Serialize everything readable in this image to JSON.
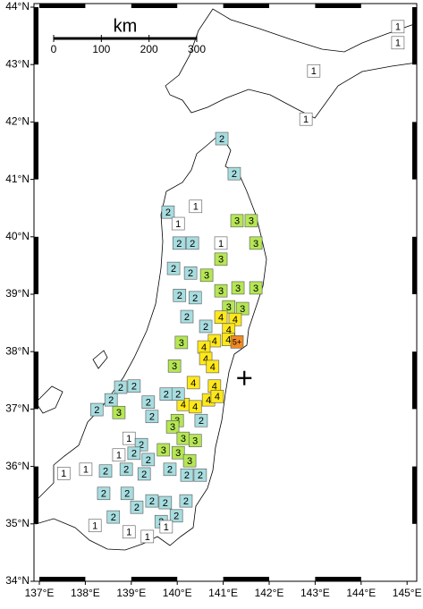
{
  "map": {
    "lon_ticks": [
      {
        "value": 137,
        "label": "137°E"
      },
      {
        "value": 138,
        "label": "138°E"
      },
      {
        "value": 139,
        "label": "139°E"
      },
      {
        "value": 140,
        "label": "140°E"
      },
      {
        "value": 141,
        "label": "141°E"
      },
      {
        "value": 142,
        "label": "142°E"
      },
      {
        "value": 143,
        "label": "143°E"
      },
      {
        "value": 144,
        "label": "144°E"
      },
      {
        "value": 145,
        "label": "145°E"
      }
    ],
    "lat_ticks": [
      {
        "value": 34,
        "label": "34°N"
      },
      {
        "value": 35,
        "label": "35°N"
      },
      {
        "value": 36,
        "label": "36°N"
      },
      {
        "value": 37,
        "label": "37°N"
      },
      {
        "value": 38,
        "label": "38°N"
      },
      {
        "value": 39,
        "label": "39°N"
      },
      {
        "value": 40,
        "label": "40°N"
      },
      {
        "value": 41,
        "label": "41°N"
      },
      {
        "value": 42,
        "label": "42°N"
      },
      {
        "value": 43,
        "label": "43°N"
      },
      {
        "value": 44,
        "label": "44°N"
      }
    ],
    "scale_bar": {
      "unit": "km",
      "ticks": [
        0,
        100,
        200,
        300
      ]
    },
    "epicenter": {
      "lon": 141.46,
      "lat": 37.54
    },
    "intensity_colors": {
      "1": "#ffffff",
      "2": "#a8dde0",
      "3": "#b5e655",
      "4": "#ffe81a",
      "5+": "#f08a24"
    },
    "stations": [
      {
        "lon": 142.97,
        "lat": 42.89,
        "intensity": "1"
      },
      {
        "lon": 142.8,
        "lat": 42.05,
        "intensity": "1"
      },
      {
        "lon": 144.8,
        "lat": 43.66,
        "intensity": "1"
      },
      {
        "lon": 144.8,
        "lat": 43.38,
        "intensity": "1"
      },
      {
        "lon": 140.97,
        "lat": 41.71,
        "intensity": "2"
      },
      {
        "lon": 141.24,
        "lat": 41.1,
        "intensity": "2"
      },
      {
        "lon": 140.4,
        "lat": 40.53,
        "intensity": "1"
      },
      {
        "lon": 139.8,
        "lat": 40.43,
        "intensity": "2"
      },
      {
        "lon": 140.02,
        "lat": 40.23,
        "intensity": "1"
      },
      {
        "lon": 141.3,
        "lat": 40.28,
        "intensity": "3"
      },
      {
        "lon": 141.61,
        "lat": 40.28,
        "intensity": "3"
      },
      {
        "lon": 141.71,
        "lat": 39.89,
        "intensity": "3"
      },
      {
        "lon": 140.95,
        "lat": 39.89,
        "intensity": "1"
      },
      {
        "lon": 140.04,
        "lat": 39.89,
        "intensity": "2"
      },
      {
        "lon": 140.33,
        "lat": 39.89,
        "intensity": "2"
      },
      {
        "lon": 140.95,
        "lat": 39.61,
        "intensity": "3"
      },
      {
        "lon": 139.92,
        "lat": 39.45,
        "intensity": "2"
      },
      {
        "lon": 140.29,
        "lat": 39.37,
        "intensity": "2"
      },
      {
        "lon": 140.64,
        "lat": 39.33,
        "intensity": "3"
      },
      {
        "lon": 140.95,
        "lat": 39.06,
        "intensity": "3"
      },
      {
        "lon": 141.32,
        "lat": 39.11,
        "intensity": "3"
      },
      {
        "lon": 141.71,
        "lat": 39.11,
        "intensity": "3"
      },
      {
        "lon": 140.05,
        "lat": 38.98,
        "intensity": "2"
      },
      {
        "lon": 140.39,
        "lat": 38.94,
        "intensity": "2"
      },
      {
        "lon": 141.12,
        "lat": 38.78,
        "intensity": "3"
      },
      {
        "lon": 141.42,
        "lat": 38.75,
        "intensity": "3"
      },
      {
        "lon": 140.95,
        "lat": 38.6,
        "intensity": "4"
      },
      {
        "lon": 141.26,
        "lat": 38.56,
        "intensity": "4"
      },
      {
        "lon": 140.62,
        "lat": 38.44,
        "intensity": "2"
      },
      {
        "lon": 140.21,
        "lat": 38.61,
        "intensity": "2"
      },
      {
        "lon": 141.12,
        "lat": 38.38,
        "intensity": "4"
      },
      {
        "lon": 140.81,
        "lat": 38.19,
        "intensity": "4"
      },
      {
        "lon": 141.11,
        "lat": 38.21,
        "intensity": "4"
      },
      {
        "lon": 141.3,
        "lat": 38.17,
        "intensity": "5+"
      },
      {
        "lon": 140.09,
        "lat": 38.16,
        "intensity": "3"
      },
      {
        "lon": 140.58,
        "lat": 38.08,
        "intensity": "4"
      },
      {
        "lon": 139.94,
        "lat": 37.75,
        "intensity": "3"
      },
      {
        "lon": 140.62,
        "lat": 37.88,
        "intensity": "4"
      },
      {
        "lon": 140.77,
        "lat": 37.74,
        "intensity": "4"
      },
      {
        "lon": 140.35,
        "lat": 37.46,
        "intensity": "4"
      },
      {
        "lon": 140.81,
        "lat": 37.4,
        "intensity": "4"
      },
      {
        "lon": 140.68,
        "lat": 37.16,
        "intensity": "4"
      },
      {
        "lon": 140.87,
        "lat": 37.22,
        "intensity": "4"
      },
      {
        "lon": 140.13,
        "lat": 37.08,
        "intensity": "4"
      },
      {
        "lon": 140.39,
        "lat": 37.04,
        "intensity": "4"
      },
      {
        "lon": 139.76,
        "lat": 37.26,
        "intensity": "2"
      },
      {
        "lon": 140.02,
        "lat": 37.26,
        "intensity": "2"
      },
      {
        "lon": 138.77,
        "lat": 37.38,
        "intensity": "2"
      },
      {
        "lon": 139.06,
        "lat": 37.4,
        "intensity": "2"
      },
      {
        "lon": 138.56,
        "lat": 37.16,
        "intensity": "2"
      },
      {
        "lon": 138.25,
        "lat": 36.99,
        "intensity": "2"
      },
      {
        "lon": 138.73,
        "lat": 36.94,
        "intensity": "3"
      },
      {
        "lon": 139.37,
        "lat": 37.12,
        "intensity": "2"
      },
      {
        "lon": 139.45,
        "lat": 36.87,
        "intensity": "2"
      },
      {
        "lon": 140.0,
        "lat": 36.8,
        "intensity": "3"
      },
      {
        "lon": 140.52,
        "lat": 36.8,
        "intensity": "2"
      },
      {
        "lon": 139.9,
        "lat": 36.69,
        "intensity": "3"
      },
      {
        "lon": 140.13,
        "lat": 36.49,
        "intensity": "3"
      },
      {
        "lon": 140.39,
        "lat": 36.45,
        "intensity": "3"
      },
      {
        "lon": 138.95,
        "lat": 36.49,
        "intensity": "1"
      },
      {
        "lon": 139.22,
        "lat": 36.38,
        "intensity": "2"
      },
      {
        "lon": 139.7,
        "lat": 36.29,
        "intensity": "3"
      },
      {
        "lon": 140.02,
        "lat": 36.24,
        "intensity": "3"
      },
      {
        "lon": 140.27,
        "lat": 36.1,
        "intensity": "3"
      },
      {
        "lon": 138.73,
        "lat": 36.2,
        "intensity": "1"
      },
      {
        "lon": 139.06,
        "lat": 36.23,
        "intensity": "2"
      },
      {
        "lon": 139.37,
        "lat": 36.12,
        "intensity": "2"
      },
      {
        "lon": 139.84,
        "lat": 35.95,
        "intensity": "2"
      },
      {
        "lon": 140.21,
        "lat": 35.85,
        "intensity": "2"
      },
      {
        "lon": 140.5,
        "lat": 35.85,
        "intensity": "2"
      },
      {
        "lon": 137.53,
        "lat": 35.88,
        "intensity": "1"
      },
      {
        "lon": 138.01,
        "lat": 35.95,
        "intensity": "1"
      },
      {
        "lon": 138.44,
        "lat": 35.92,
        "intensity": "2"
      },
      {
        "lon": 138.89,
        "lat": 35.95,
        "intensity": "2"
      },
      {
        "lon": 139.28,
        "lat": 35.87,
        "intensity": "2"
      },
      {
        "lon": 138.4,
        "lat": 35.53,
        "intensity": "2"
      },
      {
        "lon": 138.91,
        "lat": 35.53,
        "intensity": "2"
      },
      {
        "lon": 139.45,
        "lat": 35.4,
        "intensity": "2"
      },
      {
        "lon": 139.74,
        "lat": 35.37,
        "intensity": "2"
      },
      {
        "lon": 140.19,
        "lat": 35.4,
        "intensity": "2"
      },
      {
        "lon": 138.61,
        "lat": 35.12,
        "intensity": "2"
      },
      {
        "lon": 139.12,
        "lat": 35.29,
        "intensity": "2"
      },
      {
        "lon": 139.65,
        "lat": 35.04,
        "intensity": "2"
      },
      {
        "lon": 139.98,
        "lat": 35.14,
        "intensity": "2"
      },
      {
        "lon": 138.21,
        "lat": 34.97,
        "intensity": "1"
      },
      {
        "lon": 138.95,
        "lat": 34.86,
        "intensity": "1"
      },
      {
        "lon": 139.35,
        "lat": 34.78,
        "intensity": "1"
      },
      {
        "lon": 139.76,
        "lat": 34.95,
        "intensity": "1"
      }
    ]
  }
}
